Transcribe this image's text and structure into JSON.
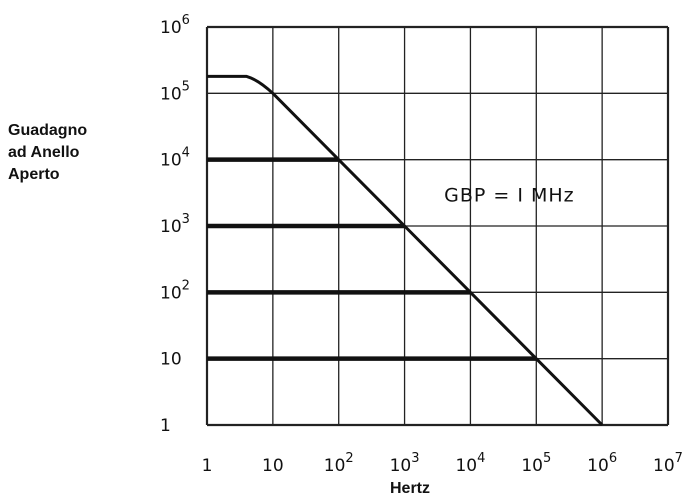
{
  "chart_data": {
    "type": "line",
    "title": "",
    "xlabel": "Hertz",
    "ylabel": [
      "Guadagno",
      "ad Anello",
      "Aperto"
    ],
    "x_scale": "log",
    "y_scale": "log",
    "xlim": [
      1,
      10000000
    ],
    "ylim": [
      1,
      1000000
    ],
    "grid": true,
    "x_ticks": [
      {
        "value": 1,
        "base": "1",
        "exp": ""
      },
      {
        "value": 10,
        "base": "10",
        "exp": ""
      },
      {
        "value": 100,
        "base": "10",
        "exp": "2"
      },
      {
        "value": 1000,
        "base": "10",
        "exp": "3"
      },
      {
        "value": 10000,
        "base": "10",
        "exp": "4"
      },
      {
        "value": 100000,
        "base": "10",
        "exp": "5"
      },
      {
        "value": 1000000,
        "base": "10",
        "exp": "6"
      },
      {
        "value": 10000000,
        "base": "10",
        "exp": "7"
      }
    ],
    "y_ticks": [
      {
        "value": 1,
        "base": "1",
        "exp": ""
      },
      {
        "value": 10,
        "base": "10",
        "exp": ""
      },
      {
        "value": 100,
        "base": "10",
        "exp": "2"
      },
      {
        "value": 1000,
        "base": "10",
        "exp": "3"
      },
      {
        "value": 10000,
        "base": "10",
        "exp": "4"
      },
      {
        "value": 100000,
        "base": "10",
        "exp": "5"
      },
      {
        "value": 1000000,
        "base": "10",
        "exp": "6"
      }
    ],
    "open_loop_curve": {
      "x": [
        1,
        4,
        6,
        10,
        100,
        1000,
        10000,
        100000,
        1000000
      ],
      "y": [
        180000,
        180000,
        160000,
        100000,
        10000,
        1000,
        100,
        10,
        1
      ]
    },
    "closed_loop_lines": [
      {
        "gain": 10000,
        "x_start": 1,
        "x_end": 100
      },
      {
        "gain": 1000,
        "x_start": 1,
        "x_end": 1000
      },
      {
        "gain": 100,
        "x_start": 1,
        "x_end": 10000
      },
      {
        "gain": 10,
        "x_start": 1,
        "x_end": 100000
      }
    ],
    "annotation": {
      "text": "GBP = I MHz",
      "x": 1000000,
      "y": 3000
    }
  }
}
